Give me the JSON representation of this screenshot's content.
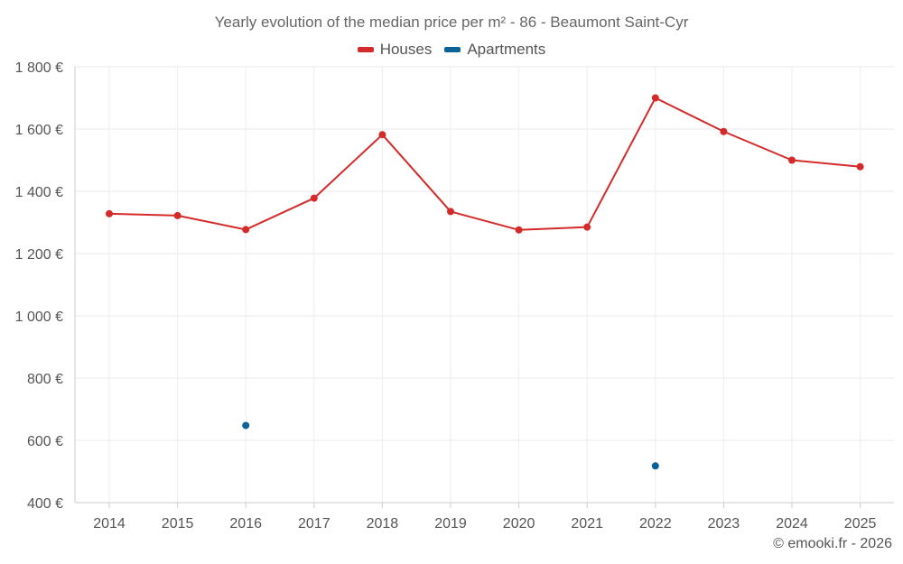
{
  "chart_data": {
    "type": "line",
    "title": "Yearly evolution of the median price per m² - 86 - Beaumont Saint-Cyr",
    "xlabel": "",
    "ylabel": "",
    "categories": [
      "2014",
      "2015",
      "2016",
      "2017",
      "2018",
      "2019",
      "2020",
      "2021",
      "2022",
      "2023",
      "2024",
      "2025"
    ],
    "ylim": [
      400,
      1800
    ],
    "yticks": [
      400,
      600,
      800,
      1000,
      1200,
      1400,
      1600,
      1800
    ],
    "ytick_labels": [
      "400 €",
      "600 €",
      "800 €",
      "1 000 €",
      "1 200 €",
      "1 400 €",
      "1 600 €",
      "1 800 €"
    ],
    "grid": true,
    "legend_position": "top-center",
    "series": [
      {
        "name": "Houses",
        "color": "#d42a2a",
        "line": true,
        "values": [
          1328,
          1322,
          1277,
          1378,
          1582,
          1335,
          1276,
          1285,
          1700,
          1592,
          1500,
          1479
        ]
      },
      {
        "name": "Apartments",
        "color": "#0a6296",
        "line": false,
        "values": [
          null,
          null,
          648,
          null,
          null,
          null,
          null,
          null,
          518,
          null,
          null,
          null
        ]
      }
    ]
  },
  "credit": "© emooki.fr - 2026"
}
